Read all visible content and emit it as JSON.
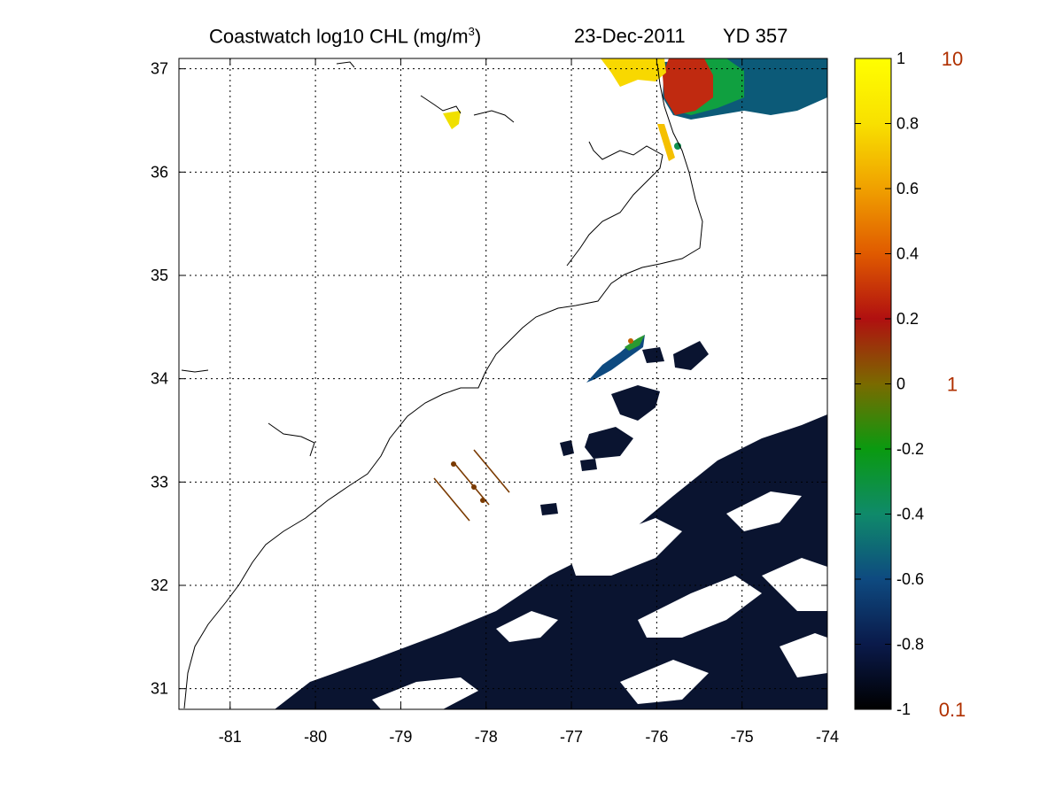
{
  "title": {
    "main": "Coastwatch  log10  CHL (mg/m",
    "superscript": "3",
    "main_close": ")",
    "date": "23-Dec-2011",
    "yearday": "YD 357"
  },
  "map": {
    "lon_ticks": [
      "-81",
      "-80",
      "-79",
      "-78",
      "-77",
      "-76",
      "-75",
      "-74"
    ],
    "lat_ticks": [
      "37",
      "36",
      "35",
      "34",
      "33",
      "32",
      "31"
    ],
    "lon_range": [
      -81.6,
      -74
    ],
    "lat_range": [
      30.8,
      37.1
    ],
    "grid": "dotted",
    "colors": {
      "coastline": "#000000",
      "cloud": "#ffffff",
      "low_chl": "#0a1430",
      "transect": "#7a3a00"
    }
  },
  "colorbar": {
    "ticks": [
      "1",
      "0.8",
      "0.6",
      "0.4",
      "0.2",
      "0",
      "-0.2",
      "-0.4",
      "-0.6",
      "-0.8",
      "-1"
    ],
    "linear_labels": [
      "10",
      "1",
      "0.1"
    ],
    "colormap": [
      "#000000",
      "#0a1a4a",
      "#0e4a80",
      "#0f8a6a",
      "#0a9a10",
      "#7a6a00",
      "#b01010",
      "#e05a00",
      "#f0a000",
      "#f8e000",
      "#ffff00"
    ]
  }
}
